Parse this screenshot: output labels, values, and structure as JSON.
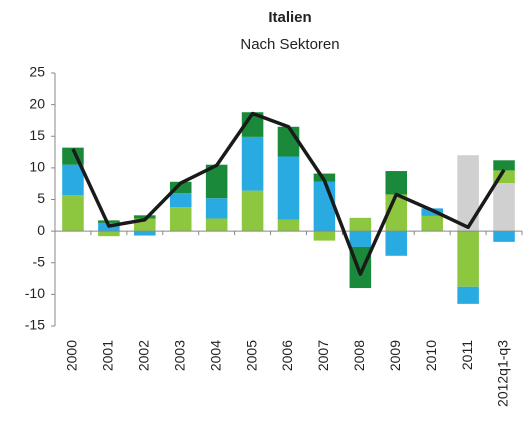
{
  "chart_data": {
    "type": "bar",
    "stacked": true,
    "title": "Italien",
    "subtitle": "Nach Sektoren",
    "categories": [
      "2000",
      "2001",
      "2002",
      "2003",
      "2004",
      "2005",
      "2006",
      "2007",
      "2008",
      "2009",
      "2010",
      "2011",
      "2012q1-q3"
    ],
    "series": [
      {
        "color": "#d0d0d0",
        "values": [
          0,
          0,
          0,
          0,
          0,
          0,
          0,
          0,
          0,
          0,
          0,
          12,
          7.6
        ]
      },
      {
        "color": "#8dc63f",
        "values": [
          5.7,
          -0.8,
          2.0,
          3.8,
          2.0,
          6.4,
          1.8,
          -1.5,
          2.1,
          5.8,
          2.4,
          -8.8,
          2.0
        ]
      },
      {
        "color": "#29abe2",
        "values": [
          4.8,
          1.3,
          -0.7,
          2.2,
          3.2,
          8.5,
          10.0,
          7.8,
          -2.5,
          -3.9,
          1.2,
          -2.7,
          -1.7
        ]
      },
      {
        "color": "#1a8a3a",
        "values": [
          2.7,
          0.4,
          0.5,
          1.8,
          5.3,
          3.9,
          4.7,
          1.3,
          -6.5,
          3.7,
          0,
          0,
          1.6
        ]
      },
      {
        "type": "line",
        "color": "#1a1a1a",
        "values": [
          13,
          0.8,
          1.8,
          7.6,
          10.4,
          18.6,
          16.5,
          8,
          -6.8,
          5.8,
          3.3,
          0.6,
          9.7
        ]
      }
    ],
    "ylim": [
      -15,
      25
    ],
    "yticks": [
      -15,
      -10,
      -5,
      0,
      5,
      10,
      15,
      20,
      25
    ],
    "grid": false
  }
}
